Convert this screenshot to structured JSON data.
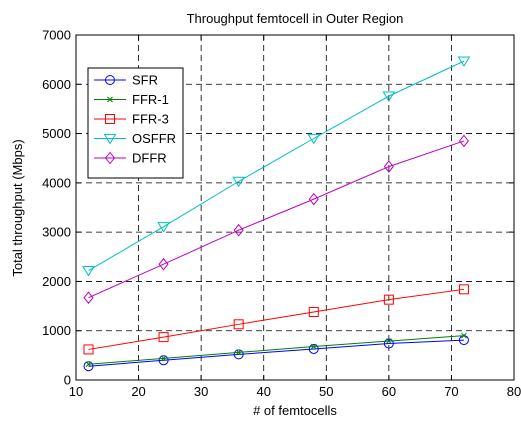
{
  "chart_data": {
    "type": "line",
    "title": "Throughput femtocell in Outer Region",
    "xlabel": "# of femtocells",
    "ylabel": "Total throughput (Mbps)",
    "xlim": [
      10,
      80
    ],
    "ylim": [
      0,
      7000
    ],
    "xticks": [
      10,
      20,
      30,
      40,
      50,
      60,
      70,
      80
    ],
    "yticks": [
      0,
      1000,
      2000,
      3000,
      4000,
      5000,
      6000,
      7000
    ],
    "grid": true,
    "legend_position": "top-left",
    "x": [
      12,
      24,
      36,
      48,
      60,
      72
    ],
    "series": [
      {
        "name": "SFR",
        "color": "#0000ff",
        "marker": "circle",
        "values": [
          280,
          400,
          520,
          630,
          740,
          810
        ]
      },
      {
        "name": "FFR-1",
        "color": "#008000",
        "marker": "x",
        "values": [
          320,
          440,
          560,
          680,
          790,
          900
        ]
      },
      {
        "name": "FFR-3",
        "color": "#ff0000",
        "marker": "square",
        "values": [
          620,
          870,
          1130,
          1380,
          1630,
          1840
        ]
      },
      {
        "name": "OSFFR",
        "color": "#00bfbf",
        "marker": "triangle-down",
        "values": [
          2220,
          3110,
          4030,
          4900,
          5760,
          6470
        ]
      },
      {
        "name": "DFFR",
        "color": "#bf00bf",
        "marker": "diamond",
        "values": [
          1670,
          2350,
          3040,
          3670,
          4330,
          4850
        ]
      }
    ]
  }
}
